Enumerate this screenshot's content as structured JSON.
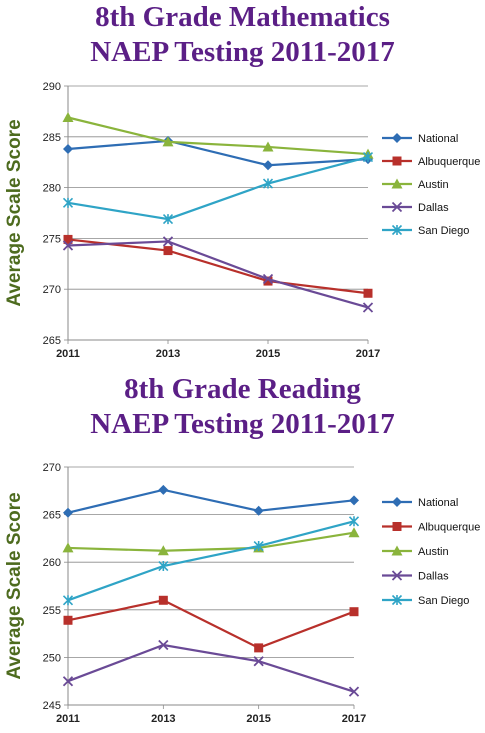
{
  "chart_data": [
    {
      "type": "line",
      "title_line1": "8th Grade Mathematics",
      "title_line2": "NAEP Testing 2011-2017",
      "ylabel": "Average Scale Score",
      "xlabel": "",
      "x": [
        "2011",
        "2013",
        "2015",
        "2017"
      ],
      "ylim": [
        265,
        290
      ],
      "yticks": [
        "265",
        "270",
        "275",
        "280",
        "285",
        "290"
      ],
      "grid": "horizontal",
      "legend_position": "right",
      "series": [
        {
          "name": "National",
          "values": [
            283.8,
            284.6,
            282.2,
            282.8
          ],
          "color": "#2e6db4",
          "marker": "diamond"
        },
        {
          "name": "Albuquerque",
          "values": [
            274.9,
            273.8,
            270.8,
            269.6
          ],
          "color": "#b8302b",
          "marker": "square"
        },
        {
          "name": "Austin",
          "values": [
            286.9,
            284.5,
            284.0,
            283.3
          ],
          "color": "#8ab43c",
          "marker": "triangle"
        },
        {
          "name": "Dallas",
          "values": [
            274.3,
            274.7,
            271.0,
            268.2
          ],
          "color": "#6a4a96",
          "marker": "x"
        },
        {
          "name": "San Diego",
          "values": [
            278.5,
            276.9,
            280.4,
            283.0
          ],
          "color": "#2fa4c6",
          "marker": "star"
        }
      ]
    },
    {
      "type": "line",
      "title_line1": "8th Grade Reading",
      "title_line2": "NAEP Testing 2011-2017",
      "ylabel": "Average Scale Score",
      "xlabel": "",
      "x": [
        "2011",
        "2013",
        "2015",
        "2017"
      ],
      "ylim": [
        245,
        270
      ],
      "yticks": [
        "245",
        "250",
        "255",
        "260",
        "265",
        "270"
      ],
      "grid": "horizontal",
      "legend_position": "right",
      "series": [
        {
          "name": "National",
          "values": [
            265.2,
            267.6,
            265.4,
            266.5
          ],
          "color": "#2e6db4",
          "marker": "diamond"
        },
        {
          "name": "Albuquerque",
          "values": [
            253.9,
            256.0,
            251.0,
            254.8
          ],
          "color": "#b8302b",
          "marker": "square"
        },
        {
          "name": "Austin",
          "values": [
            261.5,
            261.2,
            261.5,
            263.1
          ],
          "color": "#8ab43c",
          "marker": "triangle"
        },
        {
          "name": "Dallas",
          "values": [
            247.5,
            251.3,
            249.6,
            246.4
          ],
          "color": "#6a4a96",
          "marker": "x"
        },
        {
          "name": "San Diego",
          "values": [
            256.0,
            259.6,
            261.7,
            264.3
          ],
          "color": "#2fa4c6",
          "marker": "star"
        }
      ]
    }
  ]
}
